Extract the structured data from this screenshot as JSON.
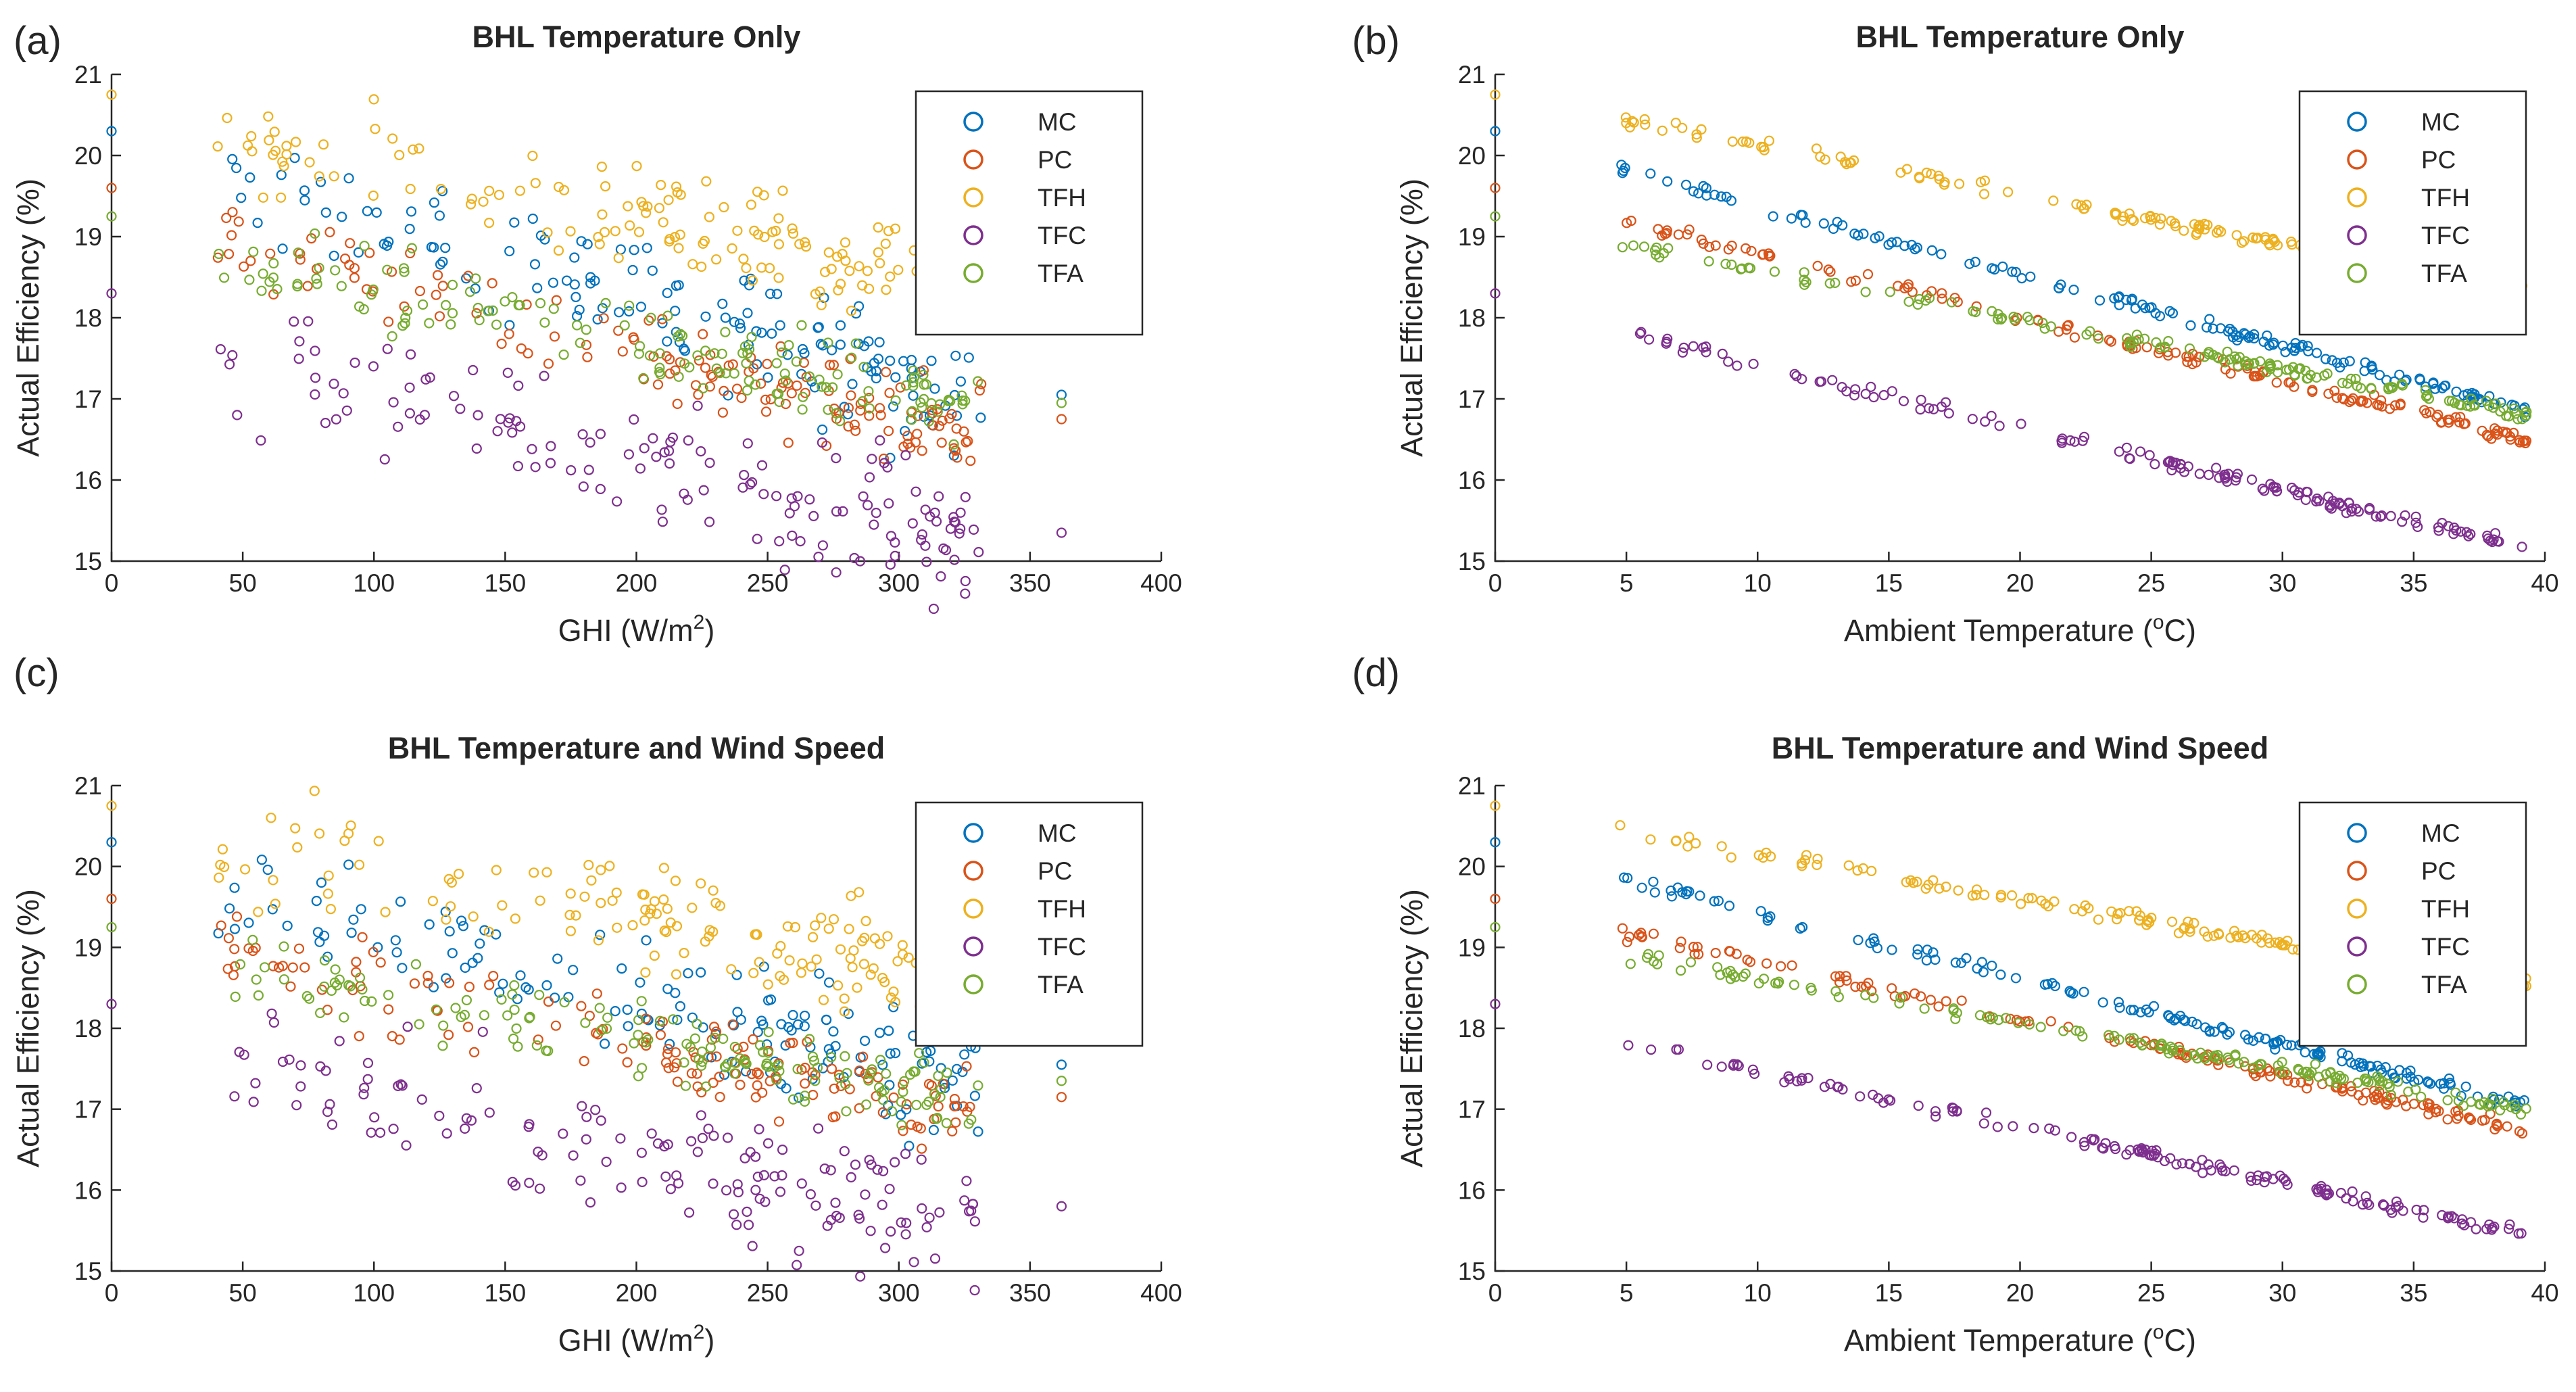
{
  "figure": {
    "series_names": [
      "MC",
      "PC",
      "TFH",
      "TFC",
      "TFA"
    ],
    "series_colors": {
      "MC": "#0072BD",
      "PC": "#D95319",
      "TFH": "#EDB120",
      "TFC": "#7E2F8E",
      "TFA": "#77AC30"
    }
  },
  "chart_data": [
    {
      "panel_label": "(a)",
      "type": "scatter",
      "title": "BHL Temperature Only",
      "xlabel": "GHI (W/m",
      "xlabel_sup": "2",
      "xlabel_end": ")",
      "ylabel": "Actual Efficiency (%)",
      "xlim": [
        0,
        400
      ],
      "ylim": [
        15,
        21
      ],
      "xticks": [
        0,
        50,
        100,
        150,
        200,
        250,
        300,
        350,
        400
      ],
      "yticks": [
        15,
        16,
        17,
        18,
        19,
        20,
        21
      ],
      "legend": [
        "MC",
        "PC",
        "TFH",
        "TFC",
        "TFA"
      ],
      "legend_position": "top-right",
      "x_domain": [
        40,
        332
      ],
      "x_outlier": 362,
      "axis_points": {
        "MC": 20.3,
        "PC": 19.6,
        "TFH": 20.75,
        "TFC": 18.3,
        "TFA": 19.25
      },
      "series": [
        {
          "name": "MC",
          "start": 19.6,
          "end": 17.0,
          "spread": 0.55,
          "outlier": 17.05
        },
        {
          "name": "PC",
          "start": 18.9,
          "end": 16.55,
          "spread": 0.4,
          "outlier": 16.75
        },
        {
          "name": "TFH",
          "start": 20.2,
          "end": 18.4,
          "spread": 0.5,
          "outlier": null
        },
        {
          "name": "TFC",
          "start": 17.5,
          "end": 15.15,
          "spread": 0.6,
          "outlier": 15.35
        },
        {
          "name": "TFA",
          "start": 18.75,
          "end": 16.85,
          "spread": 0.35,
          "outlier": 16.95
        }
      ]
    },
    {
      "panel_label": "(b)",
      "type": "scatter",
      "title": "BHL Temperature Only",
      "xlabel": "Ambient Temperature (",
      "xlabel_sup": "o",
      "xlabel_end": "C)",
      "ylabel": "Actual Efficiency (%)",
      "xlim": [
        0,
        40
      ],
      "ylim": [
        15,
        21
      ],
      "xticks": [
        0,
        5,
        10,
        15,
        20,
        25,
        30,
        35,
        40
      ],
      "yticks": [
        15,
        16,
        17,
        18,
        19,
        20,
        21
      ],
      "legend": [
        "MC",
        "PC",
        "TFH",
        "TFC",
        "TFA"
      ],
      "legend_position": "top-right",
      "x_domain": [
        4.7,
        39.3
      ],
      "x_outlier": null,
      "axis_points": {
        "MC": 20.3,
        "PC": 19.6,
        "TFH": 20.75,
        "TFC": 18.3,
        "TFA": 19.25
      },
      "series": [
        {
          "name": "MC",
          "start": 19.85,
          "end": 16.85,
          "spread": 0.06,
          "outlier": null
        },
        {
          "name": "PC",
          "start": 19.2,
          "end": 16.5,
          "spread": 0.06,
          "outlier": null
        },
        {
          "name": "TFH",
          "start": 20.45,
          "end": 18.35,
          "spread": 0.06,
          "outlier": null
        },
        {
          "name": "TFC",
          "start": 17.85,
          "end": 15.15,
          "spread": 0.06,
          "outlier": null
        },
        {
          "name": "TFA",
          "start": 18.9,
          "end": 16.8,
          "spread": 0.06,
          "outlier": null
        }
      ]
    },
    {
      "panel_label": "(c)",
      "type": "scatter",
      "title": "BHL Temperature and Wind Speed",
      "xlabel": "GHI (W/m",
      "xlabel_sup": "2",
      "xlabel_end": ")",
      "ylabel": "Actual Efficiency (%)",
      "xlim": [
        0,
        400
      ],
      "ylim": [
        15,
        21
      ],
      "xticks": [
        0,
        50,
        100,
        150,
        200,
        250,
        300,
        350,
        400
      ],
      "yticks": [
        15,
        16,
        17,
        18,
        19,
        20,
        21
      ],
      "legend": [
        "MC",
        "PC",
        "TFH",
        "TFC",
        "TFA"
      ],
      "legend_position": "top-right",
      "x_domain": [
        40,
        332
      ],
      "x_outlier": 362,
      "axis_points": {
        "MC": 20.3,
        "PC": 19.6,
        "TFH": 20.75,
        "TFC": 18.3,
        "TFA": 19.25
      },
      "series": [
        {
          "name": "MC",
          "start": 19.7,
          "end": 17.3,
          "spread": 0.55,
          "outlier": 17.55
        },
        {
          "name": "PC",
          "start": 18.95,
          "end": 16.85,
          "spread": 0.4,
          "outlier": 17.15
        },
        {
          "name": "TFH",
          "start": 20.3,
          "end": 18.65,
          "spread": 0.5,
          "outlier": null
        },
        {
          "name": "TFC",
          "start": 17.6,
          "end": 15.45,
          "spread": 0.6,
          "outlier": 15.8
        },
        {
          "name": "TFA",
          "start": 18.75,
          "end": 17.1,
          "spread": 0.35,
          "outlier": 17.35
        }
      ]
    },
    {
      "panel_label": "(d)",
      "type": "scatter",
      "title": "BHL Temperature and Wind Speed",
      "xlabel": "Ambient Temperature (",
      "xlabel_sup": "o",
      "xlabel_end": "C)",
      "ylabel": "Actual Efficiency (%)",
      "xlim": [
        0,
        40
      ],
      "ylim": [
        15,
        21
      ],
      "xticks": [
        0,
        5,
        10,
        15,
        20,
        25,
        30,
        35,
        40
      ],
      "yticks": [
        15,
        16,
        17,
        18,
        19,
        20,
        21
      ],
      "legend": [
        "MC",
        "PC",
        "TFH",
        "TFC",
        "TFA"
      ],
      "legend_position": "top-right",
      "x_domain": [
        4.7,
        39.3
      ],
      "x_outlier": null,
      "axis_points": {
        "MC": 20.3,
        "PC": 19.6,
        "TFH": 20.75,
        "TFC": 18.3,
        "TFA": 19.25
      },
      "series": [
        {
          "name": "MC",
          "start": 19.85,
          "end": 17.05,
          "spread": 0.06,
          "outlier": null
        },
        {
          "name": "PC",
          "start": 19.2,
          "end": 16.75,
          "spread": 0.06,
          "outlier": null
        },
        {
          "name": "TFH",
          "start": 20.45,
          "end": 18.55,
          "spread": 0.06,
          "outlier": null
        },
        {
          "name": "TFC",
          "start": 17.85,
          "end": 15.45,
          "spread": 0.06,
          "outlier": null
        },
        {
          "name": "TFA",
          "start": 18.9,
          "end": 17.0,
          "spread": 0.06,
          "outlier": null
        }
      ]
    }
  ]
}
